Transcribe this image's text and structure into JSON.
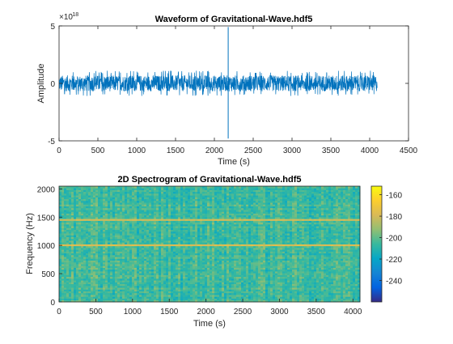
{
  "chart_data": [
    {
      "type": "line",
      "title": "Waveform of Gravitational-Wave.hdf5",
      "xlabel": "Time (s)",
      "ylabel": "Amplitude",
      "y_exponent_label": "×10",
      "y_exponent": "-18",
      "xlim": [
        0,
        4500
      ],
      "ylim": [
        -5e-18,
        5e-18
      ],
      "xticks": [
        0,
        500,
        1000,
        1500,
        2000,
        2500,
        3000,
        3500,
        4000,
        4500
      ],
      "xtick_labels": [
        "0",
        "500",
        "1000",
        "1500",
        "2000",
        "2500",
        "3000",
        "3500",
        "4000",
        "4500"
      ],
      "yticks": [
        -5e-18,
        0,
        5e-18
      ],
      "ytick_labels": [
        "-5",
        "0",
        "5"
      ],
      "grid": false,
      "series": [
        {
          "color": "#0072BD",
          "noise_band": {
            "x_start": 0,
            "x_end": 4096,
            "typical_abs_amplitude": 7e-19,
            "peak_abs_amplitude": 1.1e-18
          },
          "spikes": [
            {
              "x": 2178,
              "y_max": 4.9e-18,
              "y_min": -4.8e-18
            }
          ]
        }
      ]
    },
    {
      "type": "heatmap",
      "title": "2D Spectrogram of Gravitational-Wave.hdf5",
      "xlabel": "Time (s)",
      "ylabel": "Frequency (Hz)",
      "xlim": [
        0,
        4096
      ],
      "ylim": [
        0,
        2048
      ],
      "xticks": [
        0,
        500,
        1000,
        1500,
        2000,
        2500,
        3000,
        3500,
        4000
      ],
      "xtick_labels": [
        "0",
        "500",
        "1000",
        "1500",
        "2000",
        "2500",
        "3000",
        "3500",
        "4000"
      ],
      "yticks": [
        0,
        500,
        1000,
        1500,
        2000
      ],
      "ytick_labels": [
        "0",
        "500",
        "1000",
        "1500",
        "2000"
      ],
      "color_range": [
        -260,
        -152
      ],
      "colormap": "parula",
      "colormap_stops": [
        "#352A87",
        "#0363E1",
        "#1485D4",
        "#06A7C6",
        "#38B99E",
        "#92BF73",
        "#D9BA56",
        "#FCCE2E",
        "#F9FB0E"
      ],
      "colorbar_ticks": [
        -160,
        -180,
        -200,
        -220,
        -240
      ],
      "colorbar_tick_labels": [
        "-160",
        "-180",
        "-200",
        "-220",
        "-240"
      ],
      "background_level_db": -205,
      "background_spread_db": 12,
      "lines": [
        {
          "frequency": 1000,
          "level_db": -178
        },
        {
          "frequency": 1460,
          "level_db": -180
        }
      ]
    }
  ]
}
